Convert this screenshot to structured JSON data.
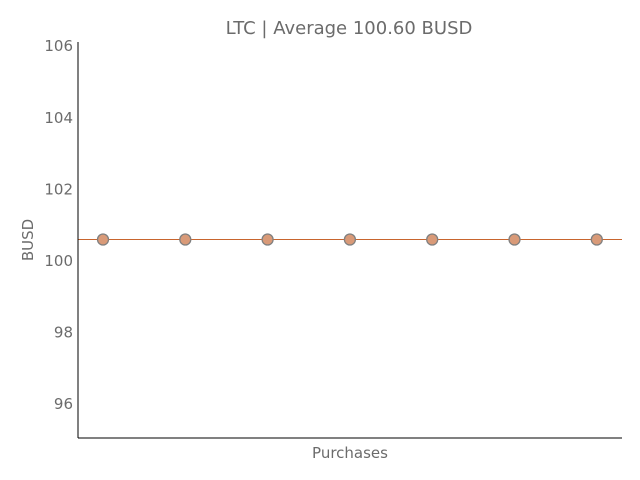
{
  "chart_data": {
    "type": "scatter",
    "title": "LTC | Average 100.60 BUSD",
    "xlabel": "Purchases",
    "ylabel": "BUSD",
    "x": [
      1,
      2,
      3,
      4,
      5,
      6,
      7
    ],
    "values": [
      100.6,
      100.6,
      100.6,
      100.6,
      100.6,
      100.6,
      100.6
    ],
    "average": 100.6,
    "ylim": [
      95.1,
      106.1
    ],
    "yticks": [
      96,
      98,
      100,
      102,
      104,
      106
    ],
    "x_ticks_shown": false,
    "grid": false,
    "colors": {
      "point_fill": "#d99a78",
      "point_edge": "#808080",
      "average_line": "#c8652e",
      "text": "#6b6b6b",
      "axis": "#000000"
    }
  }
}
